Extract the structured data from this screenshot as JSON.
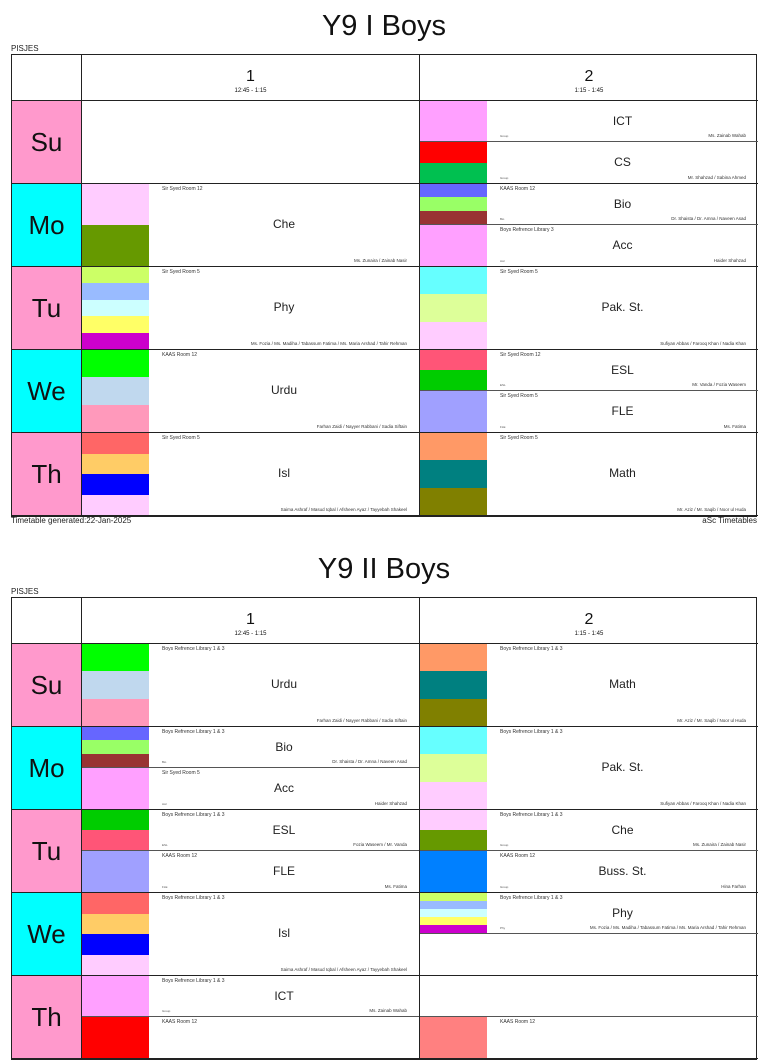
{
  "school": "PISJES",
  "footer": {
    "generated": "Timetable generated:22-Jan-2025",
    "brand": "aSc Timetables"
  },
  "periods": [
    {
      "number": "1",
      "time": "12:45 - 1:15"
    },
    {
      "number": "2",
      "time": "1:15 - 1:45"
    }
  ],
  "day_colors": {
    "pink": "#ff99cc",
    "cyan": "#00ffff"
  },
  "timetables": [
    {
      "title": "Y9 I Boys",
      "days": [
        {
          "label": "Su",
          "color": "#ff99cc",
          "p1": [],
          "p2": [
            {
              "subject": "ICT",
              "room": "",
              "teachers": "Ms. Zainab Wahab",
              "group": "Group",
              "colors": [
                "#ffa0ff"
              ]
            },
            {
              "subject": "CS",
              "room": "",
              "teachers": "Mr. Shahzad / Sabina Ahmed",
              "group": "Group",
              "colors": [
                "#ff0000",
                "#00c050"
              ]
            }
          ]
        },
        {
          "label": "Mo",
          "color": "#00ffff",
          "p1": [
            {
              "subject": "Che",
              "room": "Sir Syed Room 12",
              "teachers": "Ms. Zunaira / Zainab Nasir",
              "group": "",
              "colors": [
                "#ffccff",
                "#669900"
              ]
            }
          ],
          "p2": [
            {
              "subject": "Bio",
              "room": "KAAS Room 12",
              "teachers": "Dr. Shaista / Dr. Amna / Naveen Asad",
              "group": "Bio",
              "colors": [
                "#6666ff",
                "#99ff66",
                "#993333"
              ]
            },
            {
              "subject": "Acc",
              "room": "Boys Refrence Library 3",
              "teachers": "Haider Shahzad",
              "group": "Acc",
              "colors": [
                "#ffa0ff"
              ]
            }
          ]
        },
        {
          "label": "Tu",
          "color": "#ff99cc",
          "p1": [
            {
              "subject": "Phy",
              "room": "Sir Syed Room 5",
              "teachers": "Ms. Fozia / Ms. Madiha / Tabassum Fatima / Ms. Maria Arshad / Tahir Rehman",
              "group": "",
              "colors": [
                "#ccff66",
                "#99bbff",
                "#ccffff",
                "#ffff66",
                "#cc00cc"
              ]
            }
          ],
          "p2": [
            {
              "subject": "Pak. St.",
              "room": "Sir Syed Room 5",
              "teachers": "Sufiyan Abbas / Farooq Khan / Nadia Khan",
              "group": "",
              "colors": [
                "#66ffff",
                "#ddff99",
                "#ffccff"
              ]
            }
          ]
        },
        {
          "label": "We",
          "color": "#00ffff",
          "p1": [
            {
              "subject": "Urdu",
              "room": "KAAS Room 12",
              "teachers": "Farhan Zaidi / Nayyer Rabbani / Sadia Siftain",
              "group": "",
              "colors": [
                "#00ff00",
                "#c0d8ee",
                "#ff99bb"
              ]
            }
          ],
          "p2": [
            {
              "subject": "ESL",
              "room": "Sir Syed Room 12",
              "teachers": "Mr. Vanda / Fozia Waseem",
              "group": "ESL",
              "colors": [
                "#ff5577",
                "#00cc00"
              ]
            },
            {
              "subject": "FLE",
              "room": "Sir Syed Room 5",
              "teachers": "Ms. Fatima",
              "group": "FLE",
              "colors": [
                "#a0a0ff"
              ]
            }
          ]
        },
        {
          "label": "Th",
          "color": "#ff99cc",
          "p1": [
            {
              "subject": "Isl",
              "room": "Sir Syed Room 5",
              "teachers": "Saima Ashraf / Masud Iqbal / Afsheen Ayaz / Tayyebah Shakeel",
              "group": "",
              "colors": [
                "#ff6666",
                "#ffcc66",
                "#0000ff",
                "#ffccff"
              ]
            }
          ],
          "p2": [
            {
              "subject": "Math",
              "room": "Sir Syed Room 5",
              "teachers": "Mr. Aziz / Mr. Saqib / Noor ul Huda",
              "group": "",
              "colors": [
                "#ff9966",
                "#008080",
                "#808000"
              ]
            }
          ]
        }
      ]
    },
    {
      "title": "Y9 II Boys",
      "days": [
        {
          "label": "Su",
          "color": "#ff99cc",
          "p1": [
            {
              "subject": "Urdu",
              "room": "Boys Refrence Library 1 & 3",
              "teachers": "Farhan Zaidi / Nayyer Rabbani / Sadia Siftain",
              "group": "",
              "colors": [
                "#00ff00",
                "#c0d8ee",
                "#ff99bb"
              ]
            }
          ],
          "p2": [
            {
              "subject": "Math",
              "room": "Boys Refrence Library 1 & 3",
              "teachers": "Mr. Aziz / Mr. Saqib / Noor ul Huda",
              "group": "",
              "colors": [
                "#ff9966",
                "#008080",
                "#808000"
              ]
            }
          ]
        },
        {
          "label": "Mo",
          "color": "#00ffff",
          "p1": [
            {
              "subject": "Bio",
              "room": "Boys Refrence Library 1 & 3",
              "teachers": "Dr. Shaista / Dr. Amna / Naveen Asad",
              "group": "Bio",
              "colors": [
                "#6666ff",
                "#99ff66",
                "#993333"
              ]
            },
            {
              "subject": "Acc",
              "room": "Sir Syed Room 5",
              "teachers": "Haider Shahzad",
              "group": "Acc",
              "colors": [
                "#ffa0ff"
              ]
            }
          ],
          "p2": [
            {
              "subject": "Pak. St.",
              "room": "Boys Refrence Library 1 & 3",
              "teachers": "Sufiyan Abbas / Farooq Khan / Nadia Khan",
              "group": "",
              "colors": [
                "#66ffff",
                "#ddff99",
                "#ffccff"
              ]
            }
          ]
        },
        {
          "label": "Tu",
          "color": "#ff99cc",
          "p1": [
            {
              "subject": "ESL",
              "room": "Boys Refrence Library 1 & 3",
              "teachers": "Fozia Waseem / Mr. Vanda",
              "group": "ESL",
              "colors": [
                "#00cc00",
                "#ff5577"
              ]
            },
            {
              "subject": "FLE",
              "room": "KAAS Room 12",
              "teachers": "Ms. Fatima",
              "group": "FLE",
              "colors": [
                "#a0a0ff"
              ]
            }
          ],
          "p2": [
            {
              "subject": "Che",
              "room": "Boys Refrence Library 1 & 3",
              "teachers": "Ms. Zunaira / Zainab Nasir",
              "group": "Group",
              "colors": [
                "#ffccff",
                "#669900"
              ]
            },
            {
              "subject": "Buss. St.",
              "room": "KAAS Room 12",
              "teachers": "Hina Farhan",
              "group": "Group",
              "colors": [
                "#0080ff"
              ]
            }
          ]
        },
        {
          "label": "We",
          "color": "#00ffff",
          "p1": [
            {
              "subject": "Isl",
              "room": "Boys Refrence Library 1 & 3",
              "teachers": "Saima Ashraf / Masud Iqbal / Afsheen Ayaz / Tayyebah Shakeel",
              "group": "",
              "colors": [
                "#ff6666",
                "#ffcc66",
                "#0000ff",
                "#ffccff"
              ]
            }
          ],
          "p2": [
            {
              "subject": "Phy",
              "room": "Boys Refrence Library 1 & 3",
              "teachers": "Ms. Fozia / Ms. Madiha / Tabassum Fatima / Ms. Maria Arshad / Tahir Rehman",
              "group": "Phy",
              "colors": [
                "#ccff66",
                "#99bbff",
                "#ccffff",
                "#ffff66",
                "#cc00cc"
              ]
            },
            {
              "subject": "",
              "room": "",
              "teachers": "",
              "group": "",
              "colors": []
            }
          ]
        },
        {
          "label": "Th",
          "color": "#ff99cc",
          "p1": [
            {
              "subject": "ICT",
              "room": "Boys Refrence Library 1 & 3",
              "teachers": "Ms. Zainab Wahab",
              "group": "Group",
              "colors": [
                "#ffa0ff"
              ]
            },
            {
              "subject": "",
              "room": "KAAS Room 12",
              "teachers": "",
              "group": "",
              "colors": [
                "#ff0000"
              ]
            }
          ],
          "p2": [
            {
              "subject": "",
              "room": "",
              "teachers": "",
              "group": "",
              "colors": []
            },
            {
              "subject": "",
              "room": "KAAS Room 12",
              "teachers": "",
              "group": "",
              "colors": [
                "#ff8080"
              ]
            }
          ]
        }
      ]
    }
  ]
}
